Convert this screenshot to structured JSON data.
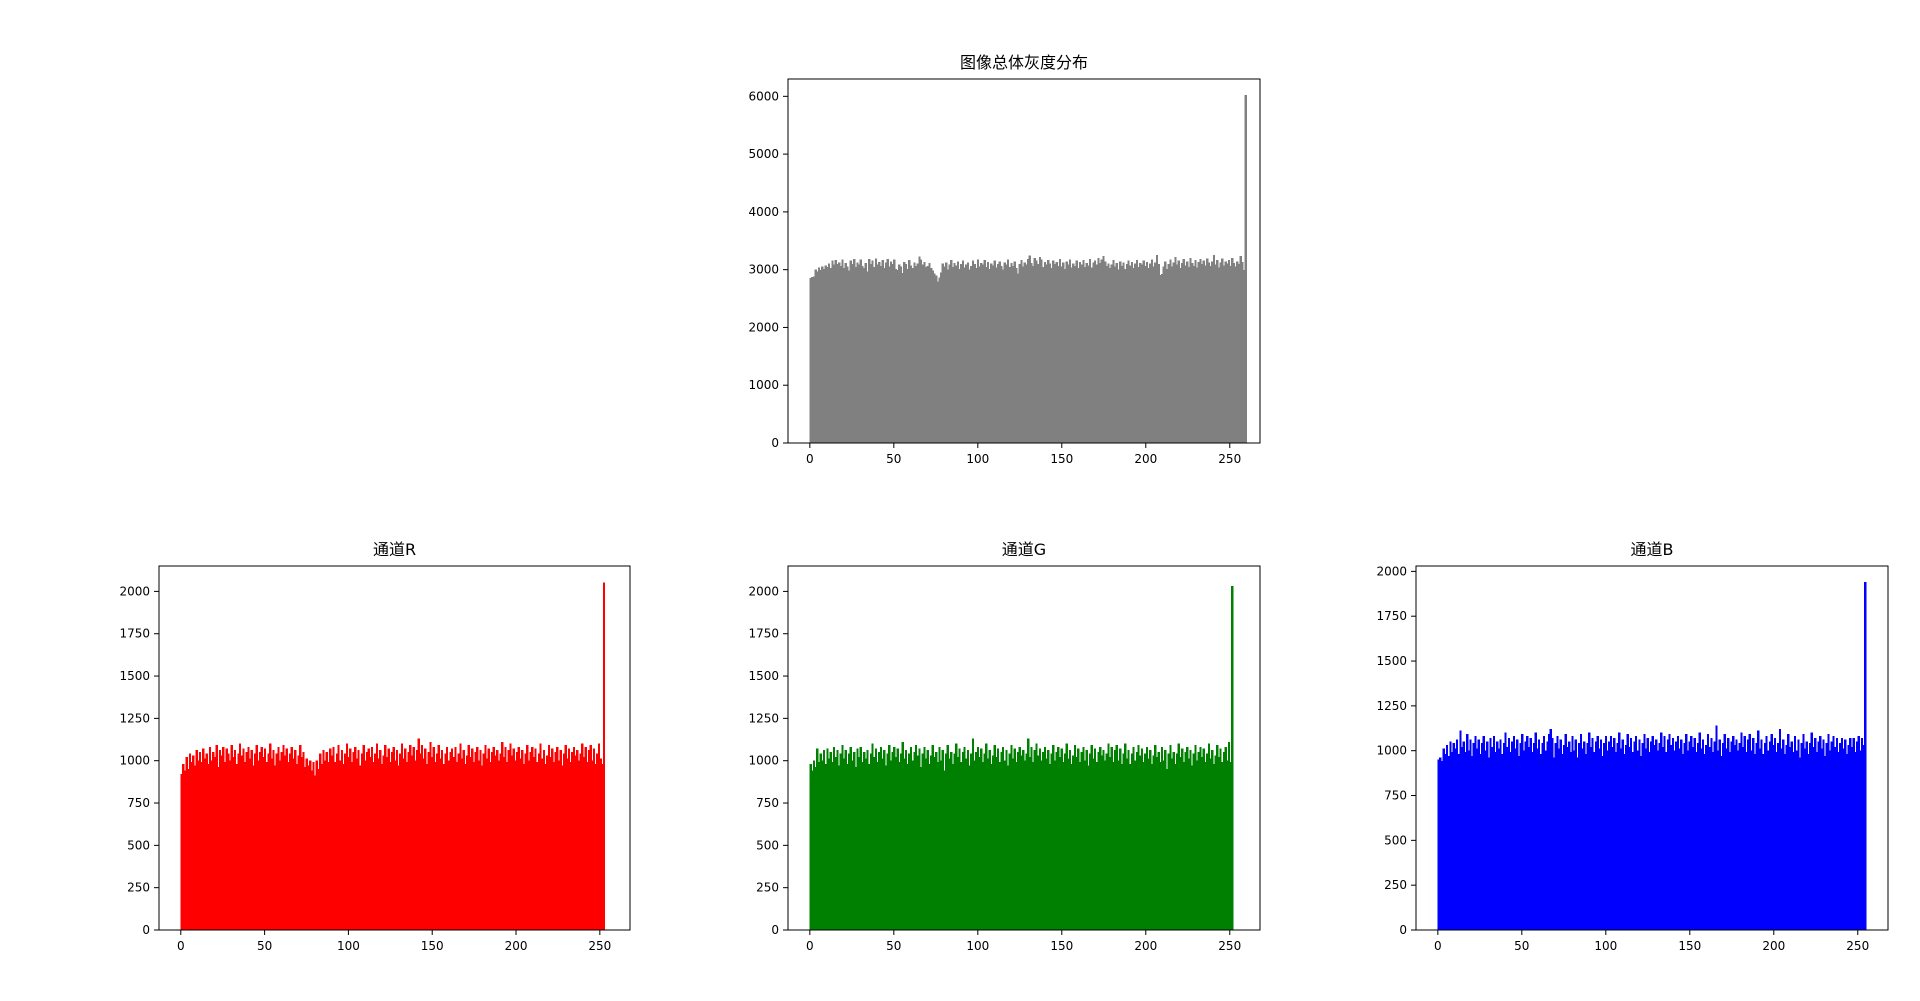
{
  "chart_data": [
    {
      "type": "bar",
      "title": "图像总体灰度分布",
      "color": "#808080",
      "xlim": [
        -13,
        268
      ],
      "ylim": [
        0,
        6300
      ],
      "xticks": [
        "0",
        "50",
        "100",
        "150",
        "200",
        "250"
      ],
      "yticks": [
        "0",
        "1000",
        "2000",
        "3000",
        "4000",
        "5000",
        "6000"
      ],
      "grid": false,
      "bins": 256,
      "x_range": [
        0,
        255
      ],
      "values": [
        2850,
        2870,
        2880,
        3000,
        2960,
        3030,
        2990,
        3050,
        3010,
        3070,
        3040,
        3100,
        3020,
        3150,
        3080,
        3160,
        3090,
        3120,
        3060,
        3170,
        3020,
        3110,
        3050,
        2980,
        3150,
        3090,
        3180,
        3040,
        3120,
        3080,
        3170,
        3060,
        3020,
        3110,
        2960,
        3180,
        3090,
        3150,
        3040,
        3190,
        3080,
        3130,
        3060,
        3160,
        3020,
        3120,
        3180,
        3050,
        3140,
        3090,
        3170,
        3010,
        2990,
        3080,
        3050,
        2940,
        3130,
        3090,
        3010,
        3160,
        3070,
        3020,
        3120,
        3060,
        3100,
        3220,
        3170,
        3080,
        3130,
        3040,
        3060,
        3110,
        3020,
        2980,
        2930,
        2890,
        2790,
        2860,
        2950,
        3100,
        3050,
        3120,
        3000,
        3080,
        3160,
        3040,
        3110,
        3070,
        3140,
        3010,
        3090,
        3150,
        3030,
        3080,
        3120,
        3000,
        3060,
        3150,
        3090,
        3020,
        3170,
        3050,
        3110,
        3080,
        3160,
        3040,
        3130,
        3010,
        3100,
        3070,
        3150,
        3030,
        3090,
        3140,
        3060,
        3000,
        3120,
        3080,
        3170,
        3040,
        3110,
        3060,
        3140,
        3020,
        2930,
        3090,
        3160,
        3050,
        3120,
        3080,
        3180,
        3240,
        3110,
        3060,
        3200,
        3150,
        3090,
        3210,
        3170,
        3040,
        3130,
        3080,
        3160,
        3100,
        3020,
        3150,
        3090,
        3130,
        3060,
        3180,
        3050,
        3120,
        3010,
        3140,
        3080,
        3170,
        3030,
        3100,
        3060,
        3150,
        3020,
        3130,
        3080,
        3160,
        3040,
        3110,
        3070,
        3180,
        3030,
        3120,
        3150,
        3080,
        3200,
        3110,
        3170,
        3230,
        3140,
        3060,
        3100,
        3020,
        3080,
        3160,
        3050,
        3110,
        3000,
        3140,
        3060,
        3120,
        3010,
        3090,
        3150,
        3070,
        3130,
        3020,
        3100,
        3160,
        3040,
        3110,
        3080,
        3150,
        3060,
        3130,
        3020,
        3100,
        3170,
        3050,
        3120,
        3250,
        3090,
        2900,
        2920,
        3050,
        3140,
        3010,
        3090,
        3170,
        3050,
        3120,
        3210,
        3080,
        3150,
        3020,
        3110,
        3180,
        3070,
        3140,
        3040,
        3200,
        3110,
        3060,
        3160,
        3030,
        3130,
        3180,
        3090,
        3150,
        3070,
        3190,
        3120,
        3060,
        3140,
        3250,
        3080,
        3160,
        3030,
        3120,
        3190,
        3070,
        3140,
        3100,
        3160,
        3060,
        3200,
        3110,
        3050,
        3140,
        3090,
        3230,
        3130,
        2990,
        6020
      ]
    },
    {
      "type": "bar",
      "title": "通道R",
      "color": "#ff0000",
      "xlim": [
        -13,
        268
      ],
      "ylim": [
        0,
        2150
      ],
      "xticks": [
        "0",
        "50",
        "100",
        "150",
        "200",
        "250"
      ],
      "yticks": [
        "0",
        "250",
        "500",
        "750",
        "1000",
        "1250",
        "1500",
        "1750",
        "2000"
      ],
      "grid": false,
      "bins": 256,
      "x_range": [
        0,
        255
      ],
      "values": [
        920,
        980,
        940,
        1020,
        950,
        1040,
        990,
        1030,
        970,
        1060,
        1000,
        1050,
        990,
        1070,
        1010,
        1040,
        980,
        1080,
        1000,
        1050,
        1020,
        1090,
        960,
        1060,
        1030,
        1080,
        990,
        1070,
        1040,
        1000,
        1090,
        1020,
        1060,
        980,
        1040,
        1100,
        1030,
        1070,
        990,
        1050,
        1080,
        1010,
        1060,
        970,
        1040,
        1090,
        1000,
        1050,
        1080,
        1020,
        1070,
        990,
        1040,
        1100,
        1010,
        1060,
        970,
        1040,
        1080,
        1000,
        1050,
        1090,
        1030,
        1070,
        990,
        1040,
        1080,
        1010,
        1060,
        980,
        1030,
        1090,
        1020,
        1050,
        960,
        1010,
        970,
        1000,
        940,
        990,
        910,
        1000,
        950,
        1040,
        980,
        1060,
        1000,
        1050,
        990,
        1070,
        1030,
        1080,
        990,
        1040,
        1090,
        1000,
        1060,
        980,
        1040,
        1100,
        1020,
        1070,
        990,
        1050,
        1080,
        1010,
        1060,
        970,
        1040,
        1090,
        1000,
        1050,
        1070,
        1020,
        1080,
        990,
        1040,
        1100,
        1010,
        1060,
        980,
        1030,
        1090,
        1020,
        1070,
        990,
        1050,
        1080,
        1000,
        1060,
        970,
        1040,
        1100,
        1010,
        1070,
        990,
        1050,
        1090,
        1030,
        1080,
        1000,
        1060,
        1130,
        1040,
        1090,
        1010,
        1070,
        980,
        1050,
        1110,
        1020,
        1080,
        990,
        1040,
        1090,
        1010,
        1060,
        980,
        1040,
        1080,
        1000,
        1050,
        1070,
        1020,
        1080,
        990,
        1040,
        1100,
        1010,
        1060,
        980,
        1030,
        1090,
        1020,
        1070,
        990,
        1050,
        1080,
        1000,
        1060,
        970,
        1040,
        1090,
        1010,
        1070,
        990,
        1050,
        1080,
        1030,
        1060,
        1000,
        1040,
        1110,
        1020,
        1080,
        990,
        1060,
        1100,
        1030,
        1070,
        1000,
        1050,
        1080,
        1010,
        1060,
        980,
        1040,
        1090,
        1000,
        1050,
        1080,
        1020,
        1070,
        990,
        1040,
        1100,
        1010,
        1060,
        980,
        1030,
        1090,
        1020,
        1070,
        990,
        1050,
        1080,
        1000,
        1060,
        970,
        1040,
        1090,
        1010,
        1070,
        990,
        1050,
        1080,
        1030,
        1060,
        1000,
        1040,
        1100,
        1020,
        1080,
        990,
        1060,
        1090,
        1000,
        1070,
        980,
        1040,
        1100,
        1010,
        980,
        2050
      ]
    },
    {
      "type": "bar",
      "title": "通道G",
      "color": "#008000",
      "xlim": [
        -13,
        268
      ],
      "ylim": [
        0,
        2150
      ],
      "xticks": [
        "0",
        "50",
        "100",
        "150",
        "200",
        "250"
      ],
      "yticks": [
        "0",
        "250",
        "500",
        "750",
        "1000",
        "1250",
        "1500",
        "1750",
        "2000"
      ],
      "grid": false,
      "bins": 256,
      "x_range": [
        0,
        255
      ],
      "values": [
        980,
        940,
        1000,
        960,
        1070,
        990,
        1040,
        1000,
        1060,
        980,
        1070,
        1010,
        1050,
        990,
        1080,
        1020,
        1060,
        970,
        1040,
        1090,
        1010,
        1060,
        980,
        1040,
        1080,
        1000,
        1050,
        960,
        1070,
        1020,
        1080,
        990,
        1050,
        1010,
        1060,
        980,
        1040,
        1100,
        1020,
        1070,
        990,
        1050,
        1080,
        1010,
        1060,
        970,
        1040,
        1090,
        1000,
        1050,
        1080,
        1020,
        1070,
        990,
        1040,
        1110,
        1010,
        1060,
        980,
        1040,
        1080,
        1000,
        1050,
        1090,
        1030,
        1070,
        960,
        1040,
        1080,
        1010,
        1060,
        980,
        1030,
        1090,
        1020,
        1050,
        990,
        1080,
        1000,
        1060,
        940,
        1040,
        1090,
        1010,
        1050,
        980,
        1040,
        1100,
        1020,
        1070,
        990,
        1050,
        1080,
        1010,
        1060,
        970,
        1040,
        1130,
        1000,
        1050,
        1080,
        1020,
        1070,
        990,
        1040,
        1100,
        1010,
        1060,
        980,
        1030,
        1090,
        1020,
        1070,
        990,
        1050,
        1080,
        1000,
        1060,
        970,
        1040,
        1090,
        1010,
        1070,
        990,
        1050,
        1080,
        1030,
        1060,
        1000,
        1040,
        1130,
        1020,
        1080,
        990,
        1060,
        1100,
        1030,
        1070,
        1000,
        1050,
        1080,
        1010,
        1060,
        980,
        1040,
        1090,
        1000,
        1050,
        1080,
        1020,
        1070,
        990,
        1040,
        1100,
        1010,
        1060,
        980,
        1030,
        1090,
        1020,
        1070,
        990,
        1050,
        1080,
        1000,
        1060,
        970,
        1040,
        1090,
        1010,
        1070,
        990,
        1050,
        1080,
        1030,
        1060,
        1000,
        1040,
        1100,
        1020,
        1080,
        990,
        1060,
        1090,
        1000,
        1070,
        980,
        1040,
        1100,
        1010,
        1060,
        980,
        1040,
        1080,
        1000,
        1050,
        1090,
        1030,
        1070,
        990,
        1040,
        1080,
        1010,
        1060,
        980,
        1030,
        1090,
        1020,
        1050,
        990,
        1080,
        1000,
        1060,
        950,
        1040,
        1090,
        1010,
        1050,
        980,
        1040,
        1100,
        1020,
        1070,
        990,
        1050,
        1080,
        1010,
        1060,
        970,
        1040,
        1090,
        1000,
        1050,
        1080,
        1020,
        1070,
        990,
        1040,
        1100,
        1010,
        1060,
        980,
        1030,
        1090,
        1020,
        1070,
        990,
        1050,
        1080,
        1000,
        1110,
        990,
        2030
      ]
    },
    {
      "type": "bar",
      "title": "通道B",
      "color": "#0000ff",
      "xlim": [
        -13,
        268
      ],
      "ylim": [
        0,
        2030
      ],
      "xticks": [
        "0",
        "50",
        "100",
        "150",
        "200",
        "250"
      ],
      "yticks": [
        "0",
        "250",
        "500",
        "750",
        "1000",
        "1250",
        "1500",
        "1750",
        "2000"
      ],
      "grid": false,
      "bins": 256,
      "x_range": [
        0,
        255
      ],
      "values": [
        950,
        960,
        940,
        1010,
        980,
        1030,
        970,
        1050,
        990,
        1040,
        1010,
        1060,
        980,
        1110,
        1020,
        1050,
        990,
        1090,
        1000,
        1060,
        970,
        1040,
        1080,
        1010,
        1060,
        980,
        1040,
        1080,
        1000,
        1050,
        960,
        1070,
        1020,
        1080,
        990,
        1050,
        1010,
        1060,
        980,
        1040,
        1100,
        1020,
        1070,
        990,
        1050,
        1080,
        1010,
        1060,
        970,
        1040,
        1090,
        1000,
        1050,
        1080,
        1020,
        1070,
        990,
        1040,
        1100,
        1010,
        1060,
        980,
        1040,
        1080,
        1000,
        1050,
        1090,
        1120,
        1070,
        960,
        1040,
        1080,
        1010,
        1060,
        980,
        1030,
        1090,
        1020,
        1050,
        990,
        1080,
        1000,
        1060,
        960,
        1040,
        1090,
        1010,
        1050,
        980,
        1040,
        1100,
        1020,
        1070,
        990,
        1050,
        1080,
        1010,
        1060,
        970,
        1040,
        1080,
        1000,
        1050,
        1080,
        1020,
        1070,
        990,
        1040,
        1100,
        1010,
        1060,
        980,
        1030,
        1090,
        1020,
        1070,
        990,
        1050,
        1080,
        1000,
        1060,
        970,
        1040,
        1090,
        1010,
        1070,
        990,
        1050,
        1080,
        1030,
        1060,
        1000,
        1040,
        1100,
        1020,
        1080,
        990,
        1060,
        1090,
        1030,
        1070,
        1000,
        1050,
        1080,
        1010,
        1060,
        980,
        1040,
        1090,
        1000,
        1050,
        1080,
        1020,
        1070,
        990,
        1040,
        1100,
        1010,
        1060,
        980,
        1030,
        1090,
        1020,
        1070,
        990,
        1050,
        1140,
        1000,
        1060,
        970,
        1040,
        1090,
        1010,
        1070,
        990,
        1050,
        1080,
        1030,
        1060,
        1000,
        1040,
        1100,
        1020,
        1080,
        990,
        1060,
        1090,
        1000,
        1070,
        980,
        1040,
        1110,
        1010,
        1060,
        980,
        1040,
        1080,
        1000,
        1050,
        1090,
        1030,
        1070,
        990,
        1040,
        1120,
        1010,
        1060,
        980,
        1030,
        1090,
        1020,
        1050,
        990,
        1080,
        1000,
        1060,
        960,
        1040,
        1090,
        1010,
        1050,
        980,
        1040,
        1100,
        1020,
        1070,
        990,
        1050,
        1080,
        1010,
        1060,
        970,
        1040,
        1090,
        1000,
        1050,
        1080,
        1020,
        1070,
        990,
        1040,
        1070,
        1010,
        1060,
        980,
        1030,
        1070,
        1020,
        1070,
        990,
        1050,
        1080,
        1000,
        1070,
        1030,
        1940
      ]
    }
  ]
}
